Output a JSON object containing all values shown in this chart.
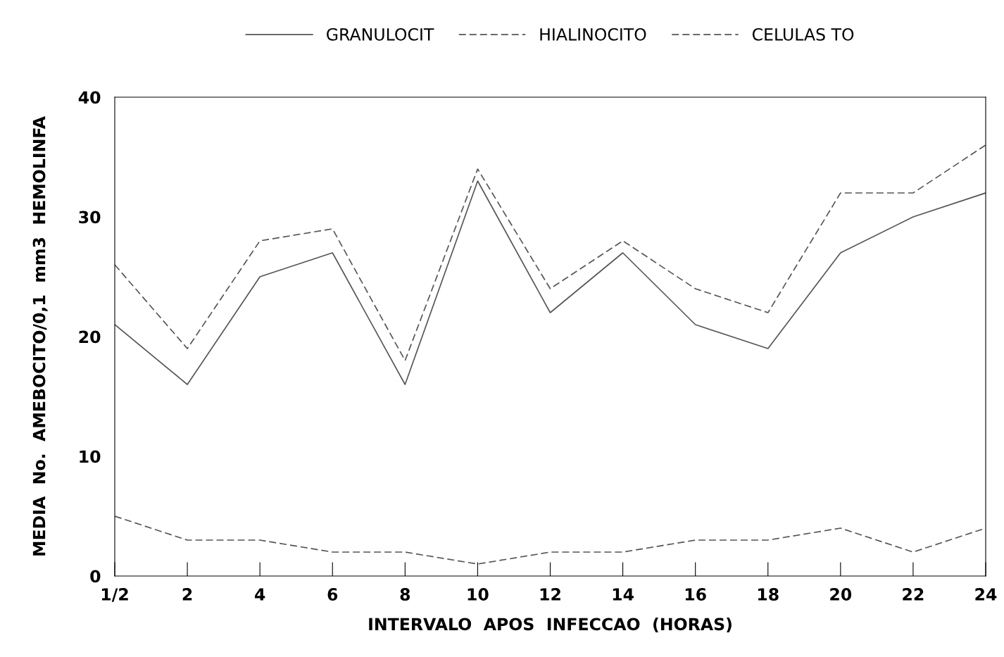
{
  "chart_data": {
    "type": "line",
    "xlabel": "INTERVALO  APOS  INFECCAO  (HORAS)",
    "ylabel": "MEDIA  No.  AMEBOCITO/0,1  mm3  HEMOLINFA",
    "categories": [
      "1/2",
      "2",
      "4",
      "6",
      "8",
      "10",
      "12",
      "14",
      "16",
      "18",
      "20",
      "22",
      "24"
    ],
    "series": [
      {
        "name": "GRANULOCIT",
        "color": "#555555",
        "line_style": "solid",
        "values": [
          21,
          16,
          25,
          27,
          16,
          33,
          22,
          27,
          21,
          19,
          27,
          30,
          32
        ]
      },
      {
        "name": "HIALINOCITO",
        "color": "#555555",
        "line_style": "dashed",
        "values": [
          26,
          19,
          28,
          29,
          18,
          34,
          24,
          28,
          24,
          22,
          32,
          32,
          36
        ]
      },
      {
        "name": "CELULAS TO",
        "color": "#555555",
        "line_style": "dashed",
        "values": [
          5,
          3,
          3,
          2,
          2,
          1,
          2,
          2,
          3,
          3,
          4,
          2,
          4
        ]
      }
    ],
    "ylim": [
      0,
      40
    ],
    "yticks": [
      0,
      10,
      20,
      30,
      40
    ],
    "grid": false,
    "legend": "top",
    "marker": "none"
  }
}
